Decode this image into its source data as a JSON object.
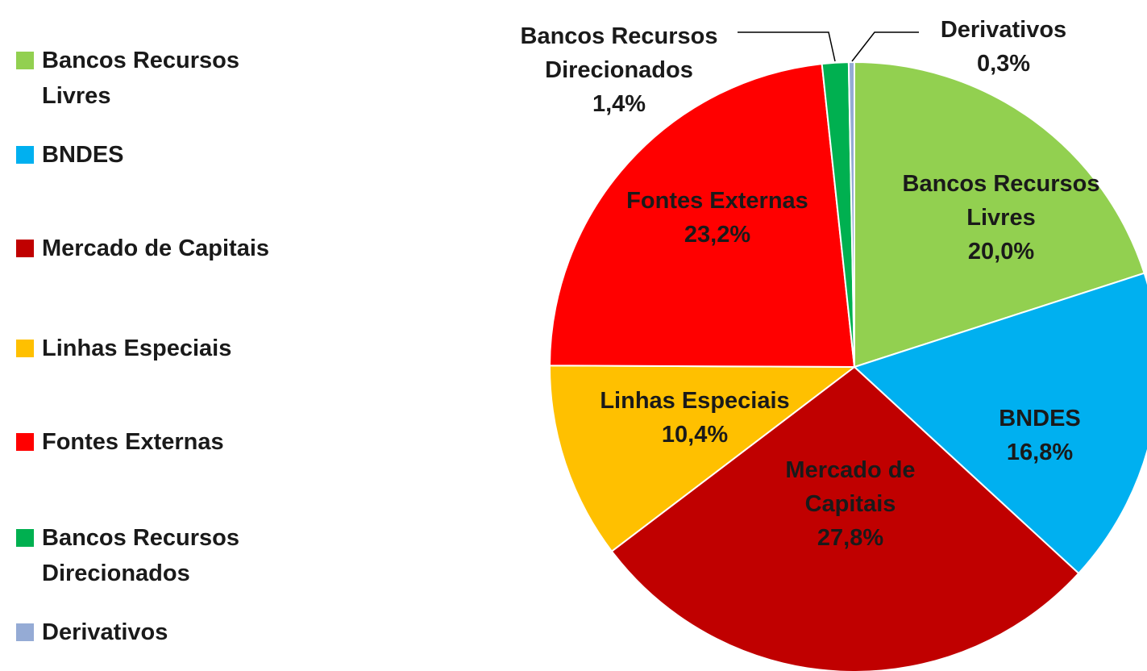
{
  "chart_data": {
    "type": "pie",
    "categories": [
      "Bancos Recursos Livres",
      "BNDES",
      "Mercado de Capitais",
      "Linhas Especiais",
      "Fontes Externas",
      "Bancos Recursos Direcionados",
      "Derivativos"
    ],
    "values": [
      20.0,
      16.8,
      27.8,
      10.4,
      23.2,
      1.4,
      0.3
    ],
    "value_labels": [
      "20,0%",
      "16,8%",
      "27,8%",
      "10,4%",
      "23,2%",
      "1,4%",
      "0,3%"
    ],
    "colors": [
      "#92d050",
      "#00b0f0",
      "#c00000",
      "#ffc000",
      "#ff0000",
      "#00b050",
      "#95abd5"
    ],
    "legend": "left"
  }
}
